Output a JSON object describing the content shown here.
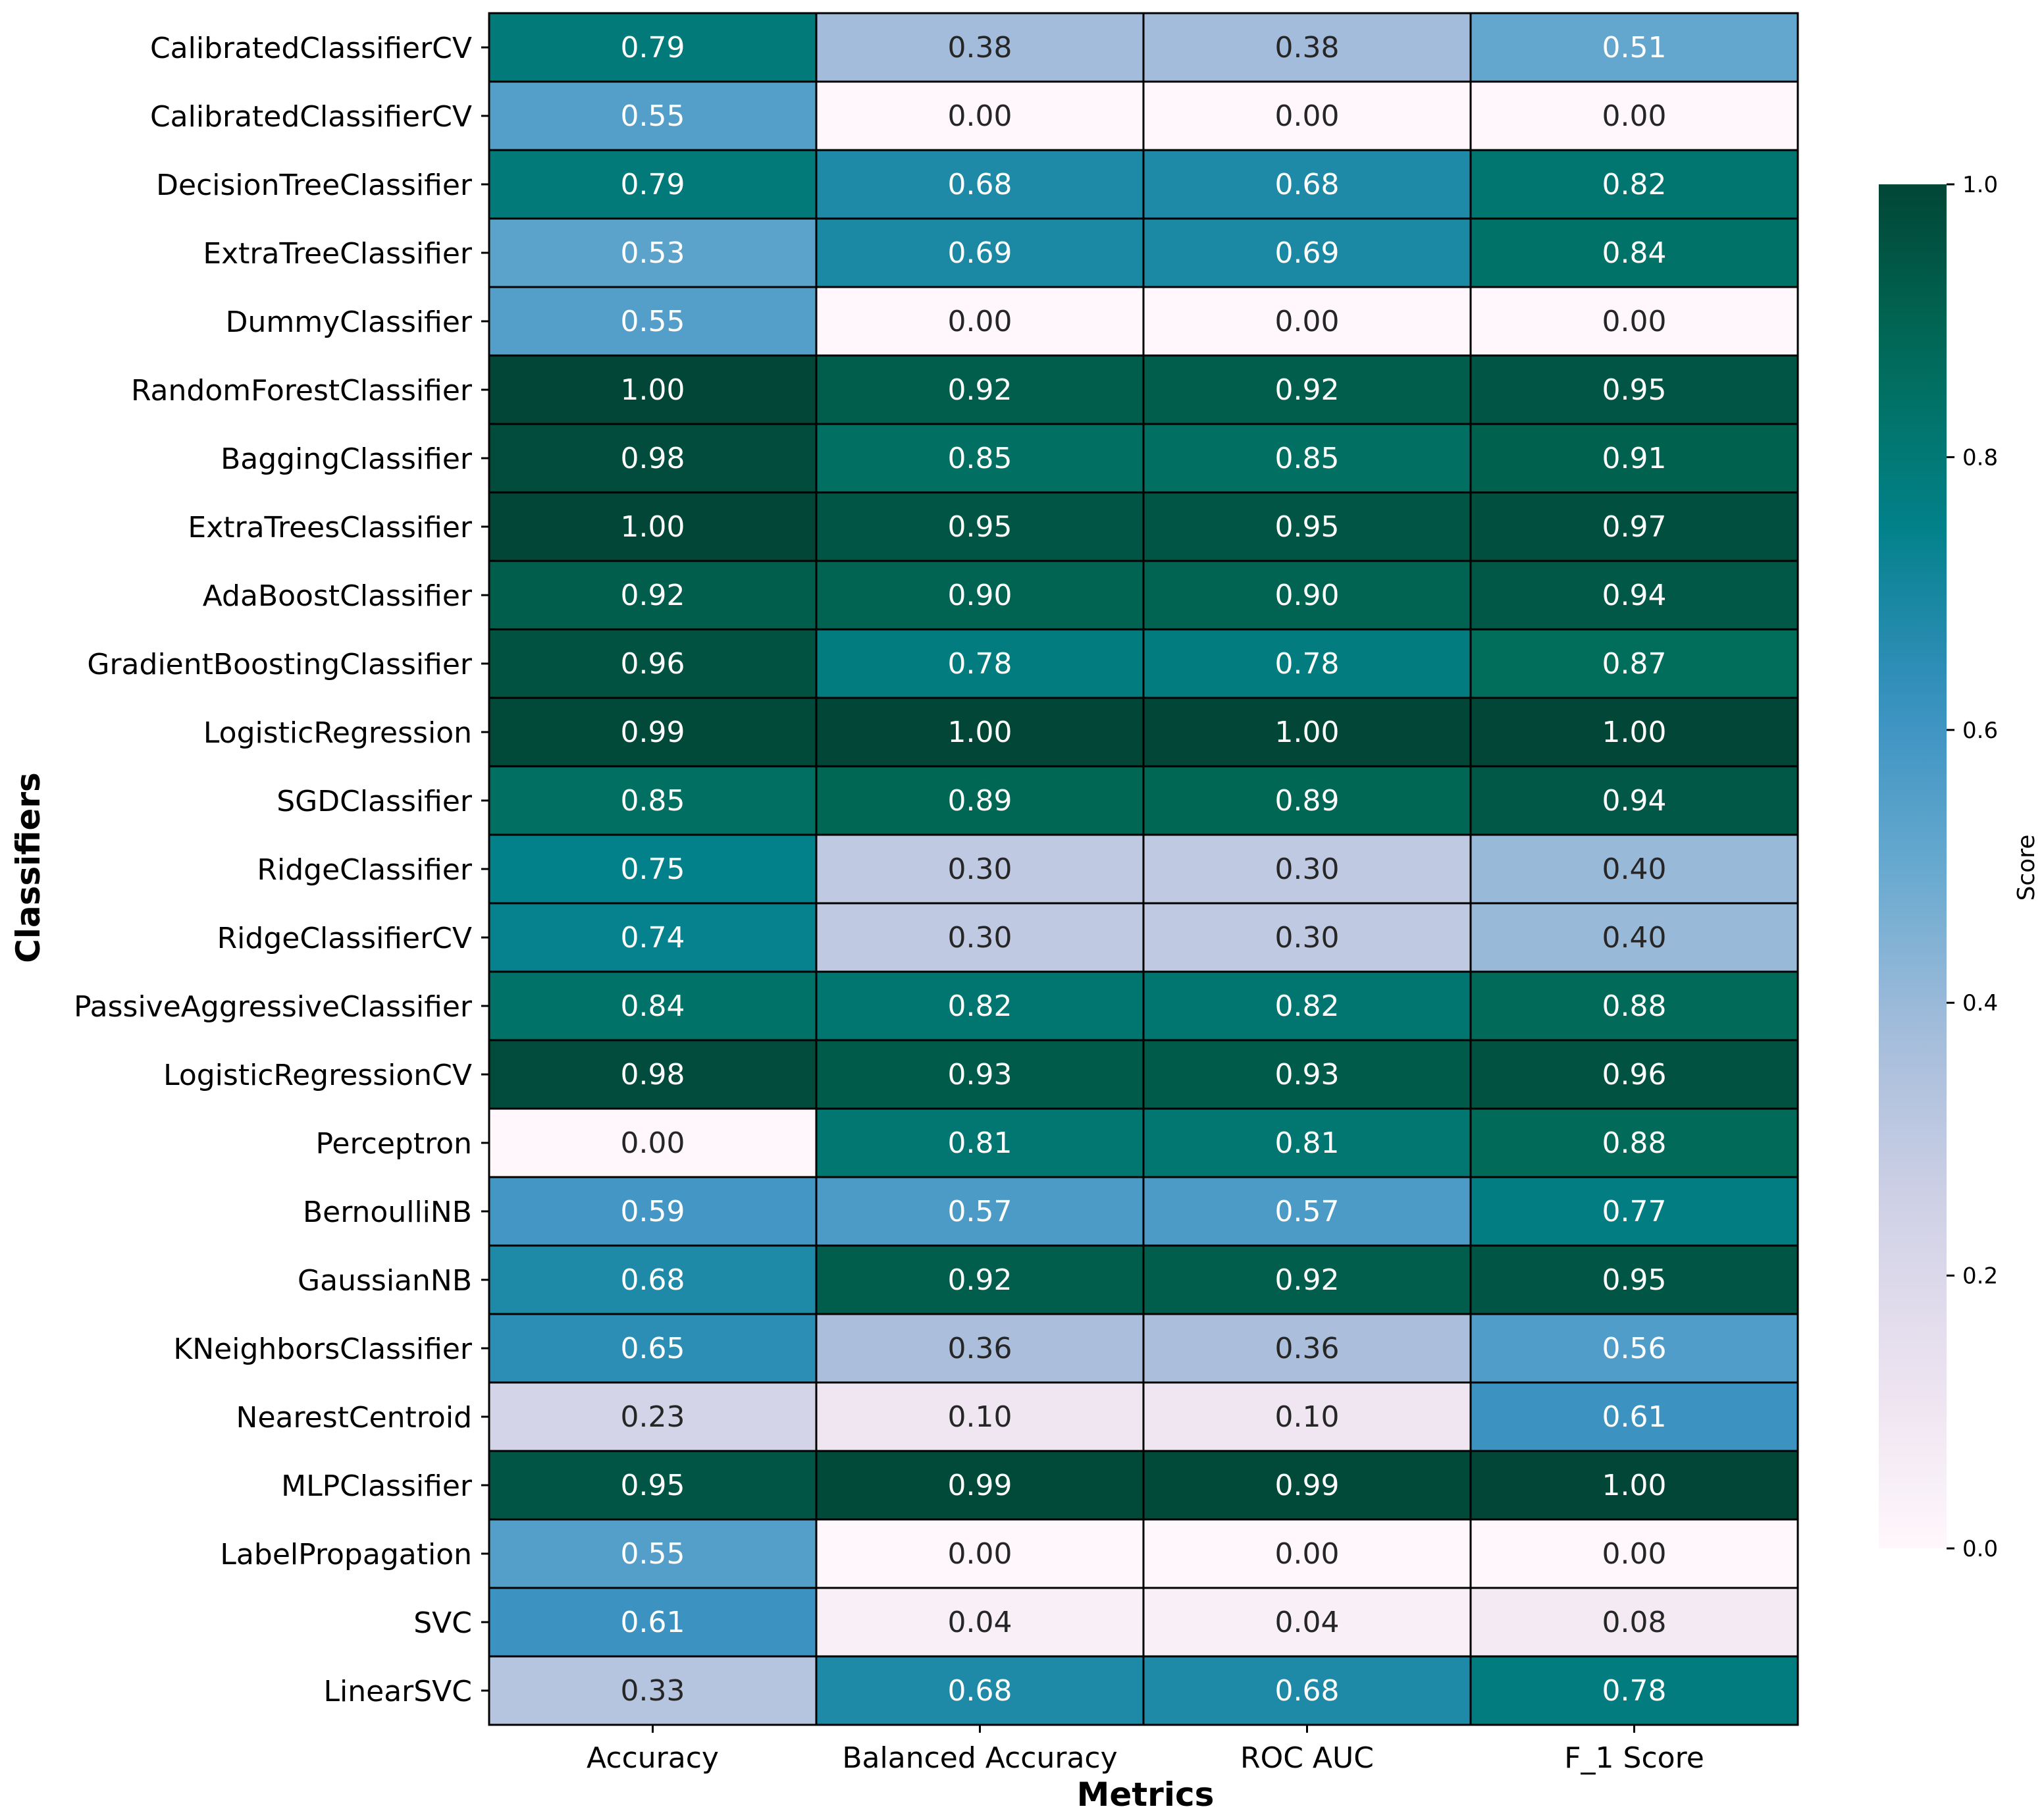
{
  "chart_data": {
    "type": "heatmap",
    "xlabel": "Metrics",
    "ylabel": "Classifiers",
    "colorbar_label": "Score",
    "colorbar_ticks": [
      "0.0",
      "0.2",
      "0.4",
      "0.6",
      "0.8",
      "1.0"
    ],
    "colorbar_tick_values": [
      0.0,
      0.2,
      0.4,
      0.6,
      0.8,
      1.0
    ],
    "vmin": 0.0,
    "vmax": 1.0,
    "colormap": "PuBuGn",
    "columns": [
      "Accuracy",
      "Balanced Accuracy",
      "ROC AUC",
      "F_1 Score"
    ],
    "rows": [
      {
        "label": "CalibratedClassifierCV",
        "values": [
          0.79,
          0.38,
          0.38,
          0.51
        ],
        "text": [
          "0.79",
          "0.38",
          "0.38",
          "0.51"
        ]
      },
      {
        "label": "CalibratedClassifierCV",
        "values": [
          0.55,
          0.0,
          0.0,
          0.0
        ],
        "text": [
          "0.55",
          "0.00",
          "0.00",
          "0.00"
        ]
      },
      {
        "label": "DecisionTreeClassifier",
        "values": [
          0.79,
          0.68,
          0.68,
          0.82
        ],
        "text": [
          "0.79",
          "0.68",
          "0.68",
          "0.82"
        ]
      },
      {
        "label": "ExtraTreeClassifier",
        "values": [
          0.53,
          0.69,
          0.69,
          0.84
        ],
        "text": [
          "0.53",
          "0.69",
          "0.69",
          "0.84"
        ]
      },
      {
        "label": "DummyClassifier",
        "values": [
          0.55,
          0.0,
          0.0,
          0.0
        ],
        "text": [
          "0.55",
          "0.00",
          "0.00",
          "0.00"
        ]
      },
      {
        "label": "RandomForestClassifier",
        "values": [
          1.0,
          0.92,
          0.92,
          0.95
        ],
        "text": [
          "1.00",
          "0.92",
          "0.92",
          "0.95"
        ]
      },
      {
        "label": "BaggingClassifier",
        "values": [
          0.98,
          0.85,
          0.85,
          0.91
        ],
        "text": [
          "0.98",
          "0.85",
          "0.85",
          "0.91"
        ]
      },
      {
        "label": "ExtraTreesClassifier",
        "values": [
          1.0,
          0.95,
          0.95,
          0.97
        ],
        "text": [
          "1.00",
          "0.95",
          "0.95",
          "0.97"
        ]
      },
      {
        "label": "AdaBoostClassifier",
        "values": [
          0.92,
          0.9,
          0.9,
          0.94
        ],
        "text": [
          "0.92",
          "0.90",
          "0.90",
          "0.94"
        ]
      },
      {
        "label": "GradientBoostingClassifier",
        "values": [
          0.96,
          0.78,
          0.78,
          0.87
        ],
        "text": [
          "0.96",
          "0.78",
          "0.78",
          "0.87"
        ]
      },
      {
        "label": "LogisticRegression",
        "values": [
          0.99,
          1.0,
          1.0,
          1.0
        ],
        "text": [
          "0.99",
          "1.00",
          "1.00",
          "1.00"
        ]
      },
      {
        "label": "SGDClassifier",
        "values": [
          0.85,
          0.89,
          0.89,
          0.94
        ],
        "text": [
          "0.85",
          "0.89",
          "0.89",
          "0.94"
        ]
      },
      {
        "label": "RidgeClassifier",
        "values": [
          0.75,
          0.3,
          0.3,
          0.4
        ],
        "text": [
          "0.75",
          "0.30",
          "0.30",
          "0.40"
        ]
      },
      {
        "label": "RidgeClassifierCV",
        "values": [
          0.74,
          0.3,
          0.3,
          0.4
        ],
        "text": [
          "0.74",
          "0.30",
          "0.30",
          "0.40"
        ]
      },
      {
        "label": "PassiveAggressiveClassifier",
        "values": [
          0.84,
          0.82,
          0.82,
          0.88
        ],
        "text": [
          "0.84",
          "0.82",
          "0.82",
          "0.88"
        ]
      },
      {
        "label": "LogisticRegressionCV",
        "values": [
          0.98,
          0.93,
          0.93,
          0.96
        ],
        "text": [
          "0.98",
          "0.93",
          "0.93",
          "0.96"
        ]
      },
      {
        "label": "Perceptron",
        "values": [
          0.0,
          0.81,
          0.81,
          0.88
        ],
        "text": [
          "0.00",
          "0.81",
          "0.81",
          "0.88"
        ]
      },
      {
        "label": "BernoulliNB",
        "values": [
          0.59,
          0.57,
          0.57,
          0.77
        ],
        "text": [
          "0.59",
          "0.57",
          "0.57",
          "0.77"
        ]
      },
      {
        "label": "GaussianNB",
        "values": [
          0.68,
          0.92,
          0.92,
          0.95
        ],
        "text": [
          "0.68",
          "0.92",
          "0.92",
          "0.95"
        ]
      },
      {
        "label": "KNeighborsClassifier",
        "values": [
          0.65,
          0.36,
          0.36,
          0.56
        ],
        "text": [
          "0.65",
          "0.36",
          "0.36",
          "0.56"
        ]
      },
      {
        "label": "NearestCentroid",
        "values": [
          0.23,
          0.1,
          0.1,
          0.61
        ],
        "text": [
          "0.23",
          "0.10",
          "0.10",
          "0.61"
        ]
      },
      {
        "label": "MLPClassifier",
        "values": [
          0.95,
          0.99,
          0.99,
          1.0
        ],
        "text": [
          "0.95",
          "0.99",
          "0.99",
          "1.00"
        ]
      },
      {
        "label": "LabelPropagation",
        "values": [
          0.55,
          0.0,
          0.0,
          0.0
        ],
        "text": [
          "0.55",
          "0.00",
          "0.00",
          "0.00"
        ]
      },
      {
        "label": "SVC",
        "values": [
          0.61,
          0.04,
          0.04,
          0.08
        ],
        "text": [
          "0.61",
          "0.04",
          "0.04",
          "0.08"
        ]
      },
      {
        "label": "LinearSVC",
        "values": [
          0.33,
          0.68,
          0.68,
          0.78
        ],
        "text": [
          "0.33",
          "0.68",
          "0.68",
          "0.78"
        ]
      }
    ]
  }
}
